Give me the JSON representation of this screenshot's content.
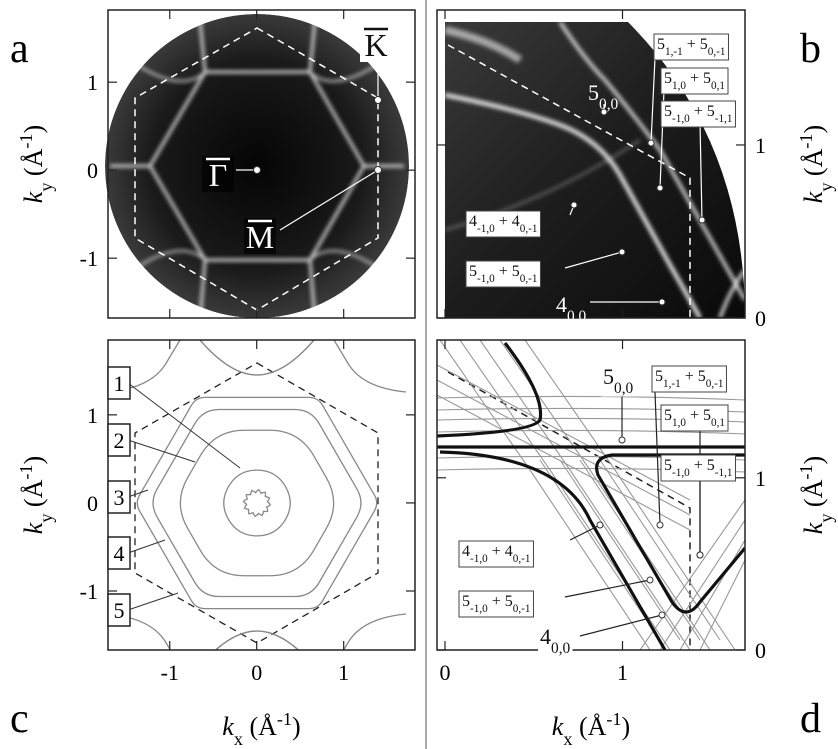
{
  "panels": {
    "a": {
      "letter": "a",
      "xlim": [
        -1.71,
        1.82
      ],
      "ylim": [
        -1.68,
        1.82
      ],
      "yticks": [
        -1,
        0,
        1
      ],
      "y_label": [
        {
          "i": "k"
        },
        {
          "sub": "y"
        },
        {
          "t": " (Å"
        },
        {
          "sup": "-1"
        },
        {
          "t": ")"
        }
      ],
      "points": [
        "Γ",
        "M",
        "K"
      ]
    },
    "b": {
      "letter": "b",
      "xlim": [
        -0.045,
        1.69
      ],
      "ylim": [
        0,
        1.78
      ],
      "yticks": [
        0,
        1
      ],
      "y_label": [
        {
          "i": "k"
        },
        {
          "sub": "y"
        },
        {
          "t": " (Å"
        },
        {
          "sup": "-1"
        },
        {
          "t": ")"
        }
      ],
      "labels": [
        [
          {
            "t": "5"
          },
          {
            "sub": "0,0"
          }
        ],
        [
          {
            "t": "5"
          },
          {
            "sub": "1,-1"
          },
          {
            "t": " + 5"
          },
          {
            "sub": "0,-1"
          }
        ],
        [
          {
            "t": "5"
          },
          {
            "sub": "1,0"
          },
          {
            "t": " + 5"
          },
          {
            "sub": "0,1"
          }
        ],
        [
          {
            "t": "5"
          },
          {
            "sub": "-1,0"
          },
          {
            "t": " + 5"
          },
          {
            "sub": "-1,1"
          }
        ],
        [
          {
            "t": "4"
          },
          {
            "sub": "-1,0"
          },
          {
            "t": " + 4"
          },
          {
            "sub": "0,-1"
          }
        ],
        [
          {
            "t": "5"
          },
          {
            "sub": "-1,0"
          },
          {
            "t": " + 5"
          },
          {
            "sub": "0,-1"
          }
        ],
        [
          {
            "t": "4"
          },
          {
            "sub": "0,0"
          }
        ]
      ]
    },
    "c": {
      "letter": "c",
      "xlim": [
        -1.71,
        1.82
      ],
      "ylim": [
        -1.67,
        1.85
      ],
      "xticks": [
        -1,
        0,
        1
      ],
      "yticks": [
        -1,
        0,
        1
      ],
      "x_label": [
        {
          "i": "k"
        },
        {
          "sub": "x"
        },
        {
          "t": " (Å"
        },
        {
          "sup": "-1"
        },
        {
          "t": ")"
        }
      ],
      "y_label": [
        {
          "i": "k"
        },
        {
          "sub": "y"
        },
        {
          "t": " (Å"
        },
        {
          "sup": "-1"
        },
        {
          "t": ")"
        }
      ],
      "contours": [
        "1",
        "2",
        "3",
        "4",
        "5"
      ]
    },
    "d": {
      "letter": "d",
      "xlim": [
        -0.045,
        1.69
      ],
      "ylim": [
        0,
        1.8
      ],
      "xticks": [
        0,
        1
      ],
      "yticks": [
        0,
        1
      ],
      "x_label": [
        {
          "i": "k"
        },
        {
          "sub": "x"
        },
        {
          "t": " (Å"
        },
        {
          "sup": "-1"
        },
        {
          "t": ")"
        }
      ],
      "y_label": [
        {
          "i": "k"
        },
        {
          "sub": "y"
        },
        {
          "t": " (Å"
        },
        {
          "sup": "-1"
        },
        {
          "t": ")"
        }
      ],
      "labels": [
        [
          {
            "t": "5"
          },
          {
            "sub": "0,0"
          }
        ],
        [
          {
            "t": "5"
          },
          {
            "sub": "1,-1"
          },
          {
            "t": " + 5"
          },
          {
            "sub": "0,-1"
          }
        ],
        [
          {
            "t": "5"
          },
          {
            "sub": "1,0"
          },
          {
            "t": " + 5"
          },
          {
            "sub": "0,1"
          }
        ],
        [
          {
            "t": "5"
          },
          {
            "sub": "-1,0"
          },
          {
            "t": " + 5"
          },
          {
            "sub": "-1,1"
          }
        ],
        [
          {
            "t": "4"
          },
          {
            "sub": "-1,0"
          },
          {
            "t": " + 4"
          },
          {
            "sub": "0,-1"
          }
        ],
        [
          {
            "t": "5"
          },
          {
            "sub": "-1,0"
          },
          {
            "t": " + 5"
          },
          {
            "sub": "0,-1"
          }
        ],
        [
          {
            "t": "4"
          },
          {
            "sub": "0,0"
          }
        ]
      ]
    }
  }
}
